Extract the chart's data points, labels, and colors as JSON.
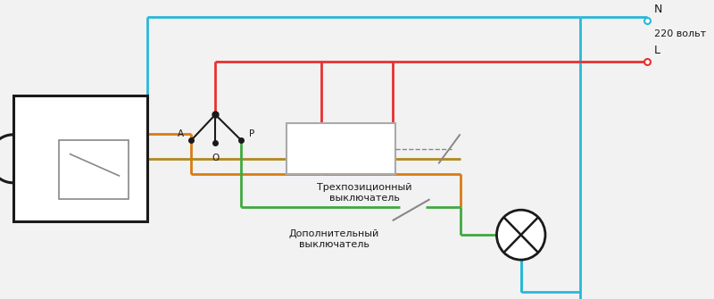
{
  "bg_color": "#f2f2f2",
  "cyan": "#29b8d8",
  "red": "#e83030",
  "orange": "#d97c10",
  "brown": "#b08820",
  "green": "#40a840",
  "gray": "#aaaaaa",
  "black": "#1a1a1a",
  "dkgray": "#888888",
  "N_label": "N",
  "L_label": "L",
  "volt_label": "220 вольт",
  "switch3_label": "Трехпозиционный\nвыключатель",
  "switch_add_label": "Дополнительный\nвыключатель",
  "lw": 2.0
}
